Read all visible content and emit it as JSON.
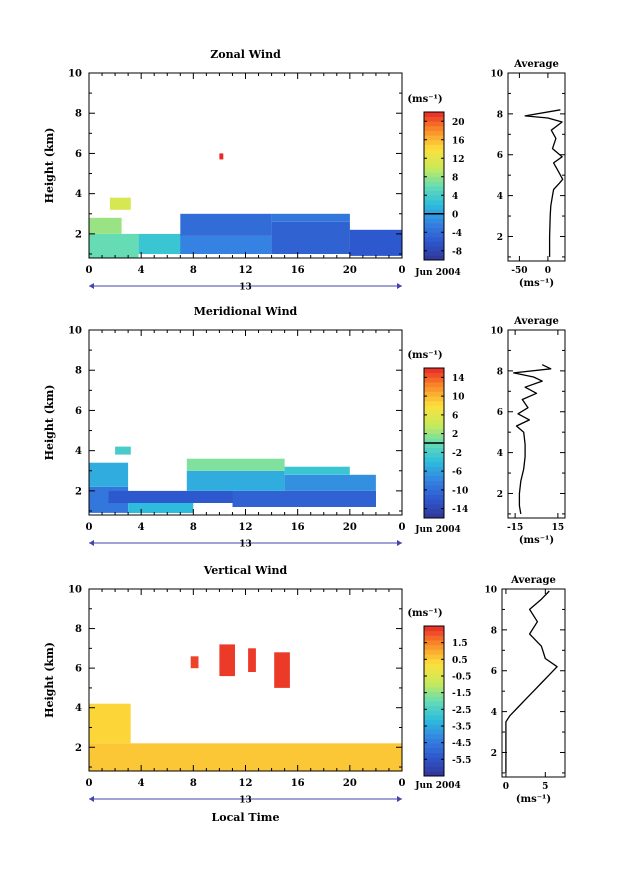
{
  "chart_data": [
    {
      "type": "heatmap",
      "title": "Zonal Wind",
      "xlabel": "",
      "ylabel": "Height (km)",
      "x_ticks": [
        "0",
        "4",
        "8",
        "12",
        "16",
        "20",
        "0"
      ],
      "y_ticks": [
        "2",
        "4",
        "6",
        "8",
        "10"
      ],
      "xlim": [
        0,
        24
      ],
      "ylim": [
        0.8,
        10
      ],
      "date_label": "Jun 2004",
      "day_label": "13",
      "colorbar": {
        "unit": "(ms⁻¹)",
        "ticks": [
          "20",
          "16",
          "12",
          "8",
          "4",
          "0",
          "-4",
          "-8"
        ],
        "range": [
          -10,
          22
        ],
        "zero_line": 0
      },
      "field": {
        "cells": [
          {
            "x0": 0,
            "x1": 3.8,
            "y0": 0.8,
            "y1": 2.0,
            "value": 6
          },
          {
            "x0": 0,
            "x1": 2.5,
            "y0": 2.0,
            "y1": 2.8,
            "value": 8
          },
          {
            "x0": 1.6,
            "x1": 3.2,
            "y0": 3.2,
            "y1": 3.8,
            "value": 11
          },
          {
            "x0": 3.8,
            "x1": 7.2,
            "y0": 1.0,
            "y1": 2.0,
            "value": 3
          },
          {
            "x0": 7.0,
            "x1": 14,
            "y0": 1.0,
            "y1": 1.9,
            "value": -2
          },
          {
            "x0": 7.0,
            "x1": 14,
            "y0": 1.9,
            "y1": 3.0,
            "value": -4
          },
          {
            "x0": 14,
            "x1": 20,
            "y0": 1.0,
            "y1": 2.6,
            "value": -5
          },
          {
            "x0": 14,
            "x1": 20,
            "y0": 2.6,
            "y1": 3.0,
            "value": -3
          },
          {
            "x0": 20,
            "x1": 24,
            "y0": 0.9,
            "y1": 2.2,
            "value": -6
          },
          {
            "x0": 10.0,
            "x1": 10.3,
            "y0": 5.7,
            "y1": 6.0,
            "value": 22
          }
        ]
      },
      "profile": {
        "title": "Average",
        "xlabel": "(ms⁻¹)",
        "x_ticks": [
          "-50",
          "0"
        ],
        "xlim": [
          -70,
          30
        ],
        "y_ticks": [
          "2",
          "4",
          "6",
          "8",
          "10"
        ],
        "ylim": [
          0.8,
          10
        ],
        "points": [
          [
            3,
            1.0
          ],
          [
            3,
            2.0
          ],
          [
            4,
            3.0
          ],
          [
            5,
            3.5
          ],
          [
            8,
            4.0
          ],
          [
            10,
            4.3
          ],
          [
            20,
            4.6
          ],
          [
            26,
            4.8
          ],
          [
            18,
            5.2
          ],
          [
            10,
            5.6
          ],
          [
            25,
            5.9
          ],
          [
            8,
            6.3
          ],
          [
            14,
            6.8
          ],
          [
            6,
            7.2
          ],
          [
            25,
            7.6
          ],
          [
            0,
            7.8
          ],
          [
            -40,
            7.9
          ],
          [
            22,
            8.2
          ]
        ]
      }
    },
    {
      "type": "heatmap",
      "title": "Meridional Wind",
      "xlabel": "",
      "ylabel": "Height (km)",
      "x_ticks": [
        "0",
        "4",
        "8",
        "12",
        "16",
        "20",
        "0"
      ],
      "y_ticks": [
        "2",
        "4",
        "6",
        "8",
        "10"
      ],
      "xlim": [
        0,
        24
      ],
      "ylim": [
        0.8,
        10
      ],
      "date_label": "Jun 2004",
      "day_label": "13",
      "colorbar": {
        "unit": "(ms⁻¹)",
        "ticks": [
          "14",
          "10",
          "6",
          "2",
          "-2",
          "-6",
          "-10",
          "-14"
        ],
        "range": [
          -16,
          16
        ],
        "zero_line": 0
      },
      "field": {
        "cells": [
          {
            "x0": 0,
            "x1": 3,
            "y0": 0.9,
            "y1": 2.2,
            "value": -9
          },
          {
            "x0": 0,
            "x1": 3,
            "y0": 2.2,
            "y1": 3.4,
            "value": -5
          },
          {
            "x0": 3,
            "x1": 8,
            "y0": 0.9,
            "y1": 1.4,
            "value": -4
          },
          {
            "x0": 1.5,
            "x1": 11,
            "y0": 1.4,
            "y1": 2.0,
            "value": -12
          },
          {
            "x0": 11,
            "x1": 22,
            "y0": 1.2,
            "y1": 2.0,
            "value": -11
          },
          {
            "x0": 7.5,
            "x1": 15,
            "y0": 2.0,
            "y1": 3.0,
            "value": -5
          },
          {
            "x0": 15,
            "x1": 22,
            "y0": 2.0,
            "y1": 2.8,
            "value": -7
          },
          {
            "x0": 7.5,
            "x1": 15,
            "y0": 3.0,
            "y1": 3.6,
            "value": 1
          },
          {
            "x0": 15,
            "x1": 20,
            "y0": 2.8,
            "y1": 3.2,
            "value": -3
          },
          {
            "x0": 2,
            "x1": 3.2,
            "y0": 3.8,
            "y1": 4.2,
            "value": -2
          }
        ]
      },
      "profile": {
        "title": "Average",
        "xlabel": "(ms⁻¹)",
        "x_ticks": [
          "-15",
          "15"
        ],
        "xlim": [
          -20,
          20
        ],
        "y_ticks": [
          "2",
          "4",
          "6",
          "8",
          "10"
        ],
        "ylim": [
          0.8,
          10
        ],
        "points": [
          [
            -11,
            1.0
          ],
          [
            -12,
            1.4
          ],
          [
            -12,
            2.0
          ],
          [
            -11,
            2.6
          ],
          [
            -9,
            3.2
          ],
          [
            -8,
            3.8
          ],
          [
            -8,
            4.4
          ],
          [
            -9,
            5.0
          ],
          [
            -14,
            5.3
          ],
          [
            -5,
            5.6
          ],
          [
            -13,
            5.9
          ],
          [
            -6,
            6.2
          ],
          [
            -10,
            6.6
          ],
          [
            0,
            6.9
          ],
          [
            -8,
            7.2
          ],
          [
            4,
            7.5
          ],
          [
            -2,
            7.7
          ],
          [
            -16,
            7.9
          ],
          [
            10,
            8.1
          ],
          [
            4,
            8.3
          ]
        ]
      }
    },
    {
      "type": "heatmap",
      "title": "Vertical Wind",
      "xlabel": "Local Time",
      "ylabel": "Height (km)",
      "x_ticks": [
        "0",
        "4",
        "8",
        "12",
        "16",
        "20",
        "0"
      ],
      "y_ticks": [
        "2",
        "4",
        "6",
        "8",
        "10"
      ],
      "xlim": [
        0,
        24
      ],
      "ylim": [
        0.8,
        10
      ],
      "date_label": "Jun 2004",
      "day_label": "13",
      "colorbar": {
        "unit": "(ms⁻¹)",
        "ticks": [
          "1.5",
          "0.5",
          "-0.5",
          "-1.5",
          "-2.5",
          "-3.5",
          "-4.5",
          "-5.5"
        ],
        "range": [
          -6.5,
          2.5
        ]
      },
      "field": {
        "cells": [
          {
            "x0": 0,
            "x1": 24,
            "y0": 0.8,
            "y1": 2.2,
            "value": 0.6
          },
          {
            "x0": 0,
            "x1": 3.2,
            "y0": 2.2,
            "y1": 4.2,
            "value": 0.4
          },
          {
            "x0": 10.0,
            "x1": 11.2,
            "y0": 5.6,
            "y1": 7.2,
            "value": 2.3
          },
          {
            "x0": 12.2,
            "x1": 12.8,
            "y0": 5.8,
            "y1": 7.0,
            "value": 2.3
          },
          {
            "x0": 14.2,
            "x1": 15.4,
            "y0": 5.0,
            "y1": 6.8,
            "value": 2.3
          },
          {
            "x0": 7.8,
            "x1": 8.4,
            "y0": 6.0,
            "y1": 6.6,
            "value": 2.2
          }
        ]
      },
      "profile": {
        "title": "Average",
        "xlabel": "(ms⁻¹)",
        "x_ticks": [
          "0",
          "5"
        ],
        "xlim": [
          -0.5,
          7.5
        ],
        "y_ticks": [
          "2",
          "4",
          "6",
          "8",
          "10"
        ],
        "ylim": [
          0.8,
          10
        ],
        "points": [
          [
            0,
            1.0
          ],
          [
            0,
            2.0
          ],
          [
            0,
            3.5
          ],
          [
            0.5,
            3.8
          ],
          [
            1.5,
            4.2
          ],
          [
            2.5,
            4.6
          ],
          [
            3.5,
            5.0
          ],
          [
            4.5,
            5.4
          ],
          [
            5.5,
            5.8
          ],
          [
            6.5,
            6.2
          ],
          [
            5.0,
            6.6
          ],
          [
            4.5,
            7.2
          ],
          [
            3.0,
            7.8
          ],
          [
            4.0,
            8.4
          ],
          [
            3.0,
            9.0
          ],
          [
            4.5,
            9.5
          ],
          [
            5.5,
            9.9
          ]
        ]
      }
    }
  ]
}
